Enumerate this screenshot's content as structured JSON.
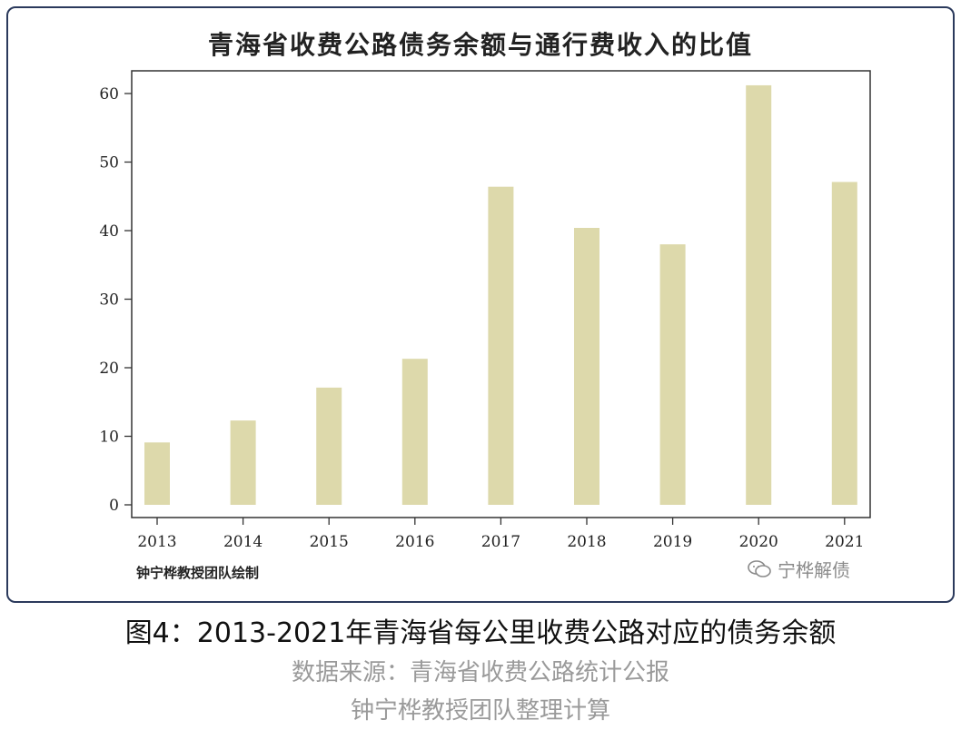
{
  "chart_data": {
    "type": "bar",
    "title": "青海省收费公路债务余额与通行费收入的比值",
    "categories": [
      "2013",
      "2014",
      "2015",
      "2016",
      "2017",
      "2018",
      "2019",
      "2020",
      "2021"
    ],
    "values": [
      9.1,
      12.3,
      17.1,
      21.3,
      46.4,
      40.4,
      38.0,
      61.2,
      47.1
    ],
    "y_ticks": [
      "0",
      "10",
      "20",
      "30",
      "40",
      "50",
      "60"
    ],
    "ylim": [
      0,
      63
    ],
    "xlabel": "",
    "ylabel": "",
    "grid": false,
    "bar_color": "#ddd9ab"
  },
  "credit": "钟宁桦教授团队绘制",
  "watermark": {
    "text": "宁桦解债",
    "icon": "wechat-icon"
  },
  "caption": "图4：2013-2021年青海省每公里收费公路对应的债务余额",
  "source": "数据来源：青海省收费公路统计公报",
  "team": "钟宁桦教授团队整理计算"
}
